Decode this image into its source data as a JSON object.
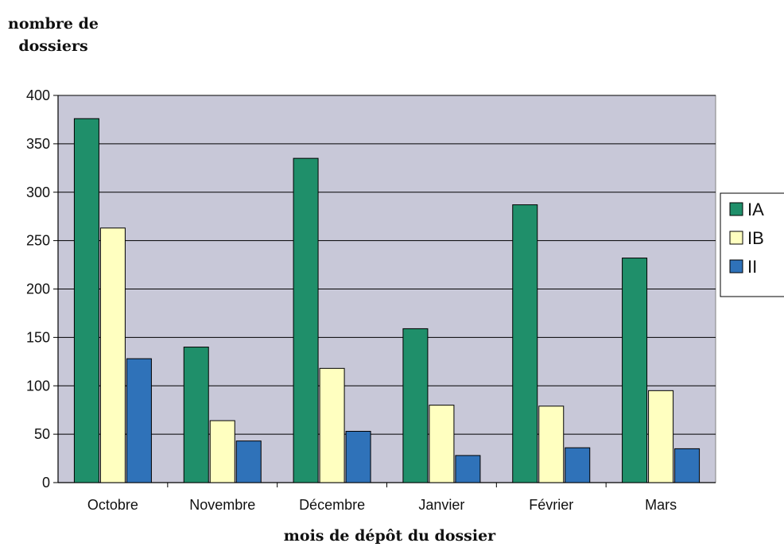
{
  "chart_data": {
    "type": "bar",
    "title": "",
    "ylabel": [
      "nombre de",
      "dossiers"
    ],
    "xlabel": "mois de dépôt du dossier",
    "categories": [
      "Octobre",
      "Novembre",
      "Décembre",
      "Janvier",
      "Février",
      "Mars"
    ],
    "series": [
      {
        "name": "IA",
        "values": [
          376,
          140,
          335,
          159,
          287,
          232
        ],
        "color": "#1f8f6a"
      },
      {
        "name": "IB",
        "values": [
          263,
          64,
          118,
          80,
          79,
          95
        ],
        "color": "#ffffc0"
      },
      {
        "name": "II",
        "values": [
          128,
          43,
          53,
          28,
          36,
          35
        ],
        "color": "#2f72b9"
      }
    ],
    "ylim": [
      0,
      400
    ],
    "yticks": [
      0,
      50,
      100,
      150,
      200,
      250,
      300,
      350,
      400
    ],
    "grid": true,
    "legend": "right",
    "plot_background": "#c8c8d8"
  }
}
